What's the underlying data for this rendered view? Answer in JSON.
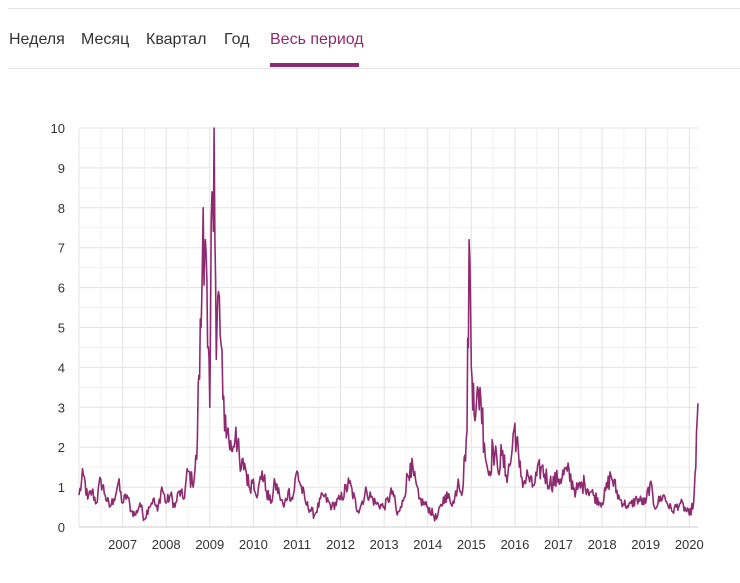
{
  "tabs": [
    {
      "id": "week",
      "label": "Неделя"
    },
    {
      "id": "month",
      "label": "Месяц"
    },
    {
      "id": "quarter",
      "label": "Квартал"
    },
    {
      "id": "year",
      "label": "Год"
    },
    {
      "id": "all",
      "label": "Весь период"
    }
  ],
  "active_tab": "all",
  "colors": {
    "accent": "#8e2a6f",
    "grid": "#e8e8e8",
    "text": "#333333"
  },
  "chart_data": {
    "type": "line",
    "title": "",
    "xlabel": "",
    "ylabel": "",
    "grid": true,
    "legend": "none",
    "ylim": [
      0,
      10
    ],
    "yticks": [
      0,
      1,
      2,
      3,
      4,
      5,
      6,
      7,
      8,
      9,
      10
    ],
    "xlim": [
      2006.0,
      2020.2
    ],
    "xticks": [
      2007,
      2008,
      2009,
      2010,
      2011,
      2012,
      2013,
      2014,
      2015,
      2016,
      2017,
      2018,
      2019,
      2020
    ],
    "series": [
      {
        "color": "#8e2a6f",
        "x": [
          2006.0,
          2006.1,
          2006.2,
          2006.3,
          2006.4,
          2006.5,
          2006.6,
          2006.7,
          2006.8,
          2006.9,
          2007.0,
          2007.1,
          2007.2,
          2007.3,
          2007.4,
          2007.5,
          2007.6,
          2007.7,
          2007.8,
          2007.9,
          2008.0,
          2008.1,
          2008.2,
          2008.3,
          2008.4,
          2008.5,
          2008.6,
          2008.7,
          2008.75,
          2008.8,
          2008.85,
          2008.9,
          2008.95,
          2009.0,
          2009.05,
          2009.1,
          2009.15,
          2009.2,
          2009.3,
          2009.4,
          2009.5,
          2009.6,
          2009.7,
          2009.8,
          2009.9,
          2010.0,
          2010.1,
          2010.2,
          2010.3,
          2010.4,
          2010.5,
          2010.6,
          2010.7,
          2010.8,
          2010.9,
          2011.0,
          2011.2,
          2011.4,
          2011.6,
          2011.8,
          2012.0,
          2012.2,
          2012.4,
          2012.6,
          2012.8,
          2013.0,
          2013.2,
          2013.3,
          2013.4,
          2013.6,
          2013.8,
          2014.0,
          2014.2,
          2014.4,
          2014.6,
          2014.7,
          2014.8,
          2014.85,
          2014.9,
          2014.95,
          2015.0,
          2015.05,
          2015.1,
          2015.2,
          2015.3,
          2015.4,
          2015.5,
          2015.6,
          2015.7,
          2015.8,
          2015.9,
          2016.0,
          2016.1,
          2016.2,
          2016.3,
          2016.4,
          2016.6,
          2016.8,
          2017.0,
          2017.2,
          2017.4,
          2017.6,
          2017.8,
          2018.0,
          2018.2,
          2018.4,
          2018.6,
          2018.8,
          2019.0,
          2019.1,
          2019.2,
          2019.4,
          2019.6,
          2019.8,
          2020.0,
          2020.1,
          2020.15,
          2020.2
        ],
        "y": [
          0.8,
          1.3,
          0.7,
          0.9,
          0.6,
          1.2,
          0.8,
          0.5,
          0.7,
          1.1,
          0.6,
          0.8,
          0.4,
          0.3,
          0.6,
          0.2,
          0.5,
          0.7,
          0.4,
          1.0,
          0.6,
          0.8,
          0.5,
          0.9,
          0.7,
          1.4,
          1.1,
          1.7,
          3.8,
          5.0,
          8.0,
          7.2,
          4.5,
          3.0,
          8.4,
          10.0,
          4.2,
          5.9,
          3.2,
          2.4,
          1.9,
          2.5,
          1.4,
          1.6,
          1.0,
          1.2,
          0.8,
          1.4,
          0.9,
          0.6,
          1.1,
          0.8,
          0.5,
          0.9,
          0.7,
          1.4,
          0.6,
          0.3,
          0.8,
          0.5,
          0.7,
          1.1,
          0.4,
          0.9,
          0.6,
          0.5,
          0.9,
          0.3,
          0.5,
          1.6,
          0.7,
          0.5,
          0.2,
          0.8,
          0.6,
          1.2,
          0.9,
          1.8,
          2.4,
          7.2,
          4.0,
          3.6,
          2.8,
          3.5,
          2.1,
          1.3,
          2.0,
          1.5,
          1.8,
          1.3,
          1.6,
          2.6,
          1.5,
          1.1,
          1.3,
          1.0,
          1.5,
          1.1,
          1.2,
          1.4,
          0.9,
          1.1,
          0.8,
          0.6,
          1.3,
          0.7,
          0.5,
          0.7,
          0.6,
          1.1,
          0.5,
          0.8,
          0.4,
          0.6,
          0.3,
          0.6,
          1.5,
          3.1
        ]
      }
    ]
  }
}
